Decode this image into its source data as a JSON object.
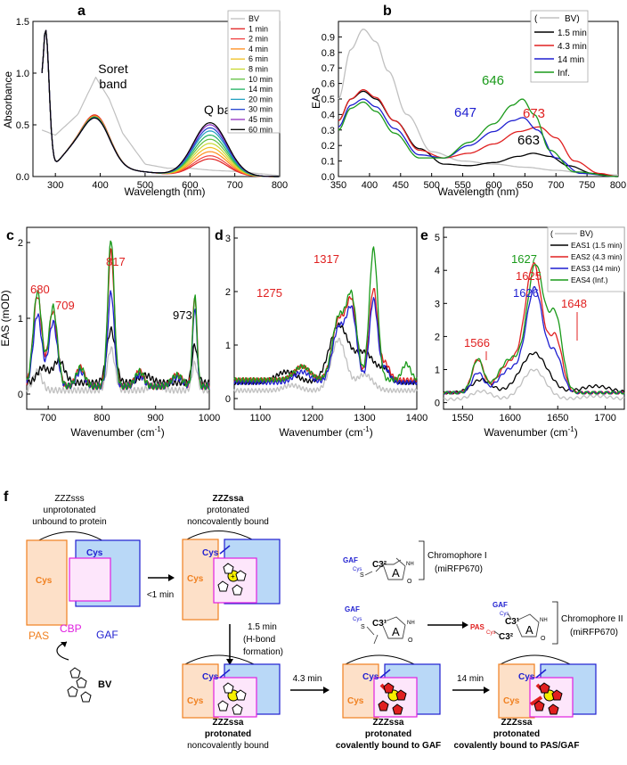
{
  "chart_data": [
    {
      "panel": "a",
      "type": "line",
      "xlabel": "Wavelength (nm)",
      "ylabel": "Absorbance",
      "xlim": [
        250,
        800
      ],
      "ylim": [
        0,
        1.5
      ],
      "xticks": [
        300,
        400,
        500,
        600,
        700,
        800
      ],
      "yticks": [
        0.0,
        0.5,
        1.0,
        1.5
      ],
      "legend": "right",
      "annotations": [
        "Soret",
        "band",
        "Q band"
      ],
      "series": [
        {
          "name": "BV",
          "color": "#c0c0c0",
          "soret": 0.96,
          "q": 0.06,
          "x": [
            270,
            300,
            350,
            390,
            420,
            450,
            500,
            550,
            600,
            650,
            700,
            750,
            800
          ],
          "y": [
            0.45,
            0.4,
            0.6,
            0.96,
            0.75,
            0.42,
            0.12,
            0.08,
            0.08,
            0.06,
            0.05,
            0.03,
            0.01
          ]
        },
        {
          "name": "1 min",
          "color": "#e02020",
          "soret": 0.55,
          "q": 0.17
        },
        {
          "name": "2 min",
          "color": "#f04040",
          "soret": 0.54,
          "q": 0.2
        },
        {
          "name": "4 min",
          "color": "#ff8c1a",
          "soret": 0.54,
          "q": 0.24
        },
        {
          "name": "6 min",
          "color": "#f0c020",
          "soret": 0.53,
          "q": 0.28
        },
        {
          "name": "8 min",
          "color": "#c8d830",
          "soret": 0.53,
          "q": 0.32
        },
        {
          "name": "10 min",
          "color": "#60c040",
          "soret": 0.53,
          "q": 0.36
        },
        {
          "name": "14 min",
          "color": "#20b060",
          "soret": 0.53,
          "q": 0.4
        },
        {
          "name": "20 min",
          "color": "#20a0c0",
          "soret": 0.52,
          "q": 0.44
        },
        {
          "name": "30 min",
          "color": "#2040d0",
          "soret": 0.52,
          "q": 0.47
        },
        {
          "name": "45 min",
          "color": "#9030c0",
          "soret": 0.52,
          "q": 0.5
        },
        {
          "name": "60 min",
          "color": "#000000",
          "soret": 0.52,
          "q": 0.52
        }
      ],
      "uv_peak": {
        "x": 278,
        "y": 1.38
      }
    },
    {
      "panel": "b",
      "type": "line",
      "xlabel": "Wavelength (nm)",
      "ylabel": "EAS",
      "xlim": [
        350,
        800
      ],
      "ylim": [
        0,
        1.0
      ],
      "xticks": [
        350,
        400,
        450,
        500,
        550,
        600,
        650,
        700,
        750,
        800
      ],
      "yticks": [
        0.0,
        0.1,
        0.2,
        0.3,
        0.4,
        0.5,
        0.6,
        0.7,
        0.8,
        0.9
      ],
      "legend": "top-right",
      "series": [
        {
          "name": "BV",
          "color": "#c0c0c0",
          "x": [
            350,
            370,
            390,
            410,
            430,
            460,
            500,
            550,
            600,
            650,
            700,
            750,
            800
          ],
          "y": [
            0.5,
            0.82,
            0.95,
            0.87,
            0.68,
            0.4,
            0.16,
            0.1,
            0.08,
            0.06,
            0.04,
            0.02,
            0.01
          ]
        },
        {
          "name": "1.5 min",
          "color": "#000000",
          "x": [
            350,
            370,
            390,
            410,
            440,
            480,
            520,
            560,
            600,
            640,
            663,
            690,
            720,
            760,
            800
          ],
          "y": [
            0.36,
            0.5,
            0.55,
            0.5,
            0.36,
            0.18,
            0.08,
            0.07,
            0.09,
            0.13,
            0.15,
            0.13,
            0.07,
            0.02,
            0.0
          ]
        },
        {
          "name": "4.3 min",
          "color": "#e02020",
          "x": [
            350,
            370,
            390,
            410,
            440,
            480,
            520,
            560,
            600,
            640,
            673,
            700,
            730,
            770,
            800
          ],
          "y": [
            0.36,
            0.5,
            0.56,
            0.51,
            0.36,
            0.17,
            0.12,
            0.15,
            0.21,
            0.29,
            0.32,
            0.25,
            0.1,
            0.02,
            0.0
          ]
        },
        {
          "name": "14 min",
          "color": "#1f1fd0",
          "x": [
            350,
            370,
            390,
            410,
            440,
            480,
            520,
            560,
            600,
            630,
            647,
            670,
            700,
            740,
            800
          ],
          "y": [
            0.32,
            0.46,
            0.5,
            0.45,
            0.31,
            0.14,
            0.12,
            0.2,
            0.29,
            0.36,
            0.38,
            0.3,
            0.12,
            0.02,
            0.0
          ]
        },
        {
          "name": "Inf.",
          "color": "#1a9a1a",
          "x": [
            350,
            370,
            390,
            410,
            440,
            480,
            520,
            560,
            600,
            630,
            646,
            665,
            690,
            730,
            800
          ],
          "y": [
            0.3,
            0.44,
            0.48,
            0.42,
            0.28,
            0.12,
            0.12,
            0.22,
            0.34,
            0.46,
            0.5,
            0.4,
            0.17,
            0.03,
            0.0
          ]
        }
      ],
      "labels": [
        {
          "text": "646",
          "color": "#1a9a1a"
        },
        {
          "text": "647",
          "color": "#1f1fd0"
        },
        {
          "text": "673",
          "color": "#e02020"
        },
        {
          "text": "663",
          "color": "#000000"
        }
      ],
      "legend_entries": [
        "(",
        "BV)",
        "1.5 min",
        "4.3 min",
        "14 min",
        "Inf."
      ]
    },
    {
      "panel": "c",
      "type": "line",
      "xlabel": "Wavenumber (cm",
      "xlabel_sup": "-1",
      "xlabel_tail": ")",
      "ylabel": "EAS (mOD)",
      "xlim": [
        660,
        1000
      ],
      "ylim": [
        -0.2,
        2.2
      ],
      "xticks": [
        700,
        800,
        900,
        1000
      ],
      "yticks": [
        0,
        1,
        2
      ],
      "peaks": [
        {
          "text": "680",
          "x": 680,
          "y": 1.3
        },
        {
          "text": "709",
          "x": 709,
          "y": 1.15
        },
        {
          "text": "817",
          "x": 817,
          "y": 2.05
        },
        {
          "text": "973",
          "x": 973,
          "y": 1.3
        }
      ]
    },
    {
      "panel": "d",
      "type": "line",
      "xlabel": "Wavenumber (cm",
      "xlabel_sup": "-1",
      "xlabel_tail": ")",
      "xlim": [
        1050,
        1400
      ],
      "ylim": [
        -0.2,
        3.2
      ],
      "xticks": [
        1100,
        1200,
        1300,
        1400
      ],
      "yticks": [
        0,
        1,
        2,
        3
      ],
      "peaks": [
        {
          "text": "1275",
          "x": 1275,
          "y": 1.9
        },
        {
          "text": "1317",
          "x": 1317,
          "y": 2.65
        }
      ]
    },
    {
      "panel": "e",
      "type": "line",
      "xlabel": "Wavenumber (cm",
      "xlabel_sup": "-1",
      "xlabel_tail": ")",
      "xlim": [
        1530,
        1720
      ],
      "ylim": [
        -0.2,
        5.3
      ],
      "xticks": [
        1550,
        1600,
        1650,
        1700
      ],
      "yticks": [
        0,
        1,
        2,
        3,
        4,
        5
      ],
      "legend": "top-right",
      "legend_entries": [
        "(",
        "BV)",
        "EAS1 (1.5 min)",
        "EAS2 (4.3 min)",
        "EAS3 (14 min)",
        "EAS4 (Inf.)"
      ],
      "peaks": [
        {
          "text": "1627",
          "color": "#1a9a1a"
        },
        {
          "text": "1625",
          "color": "#e02020"
        },
        {
          "text": "1626",
          "color": "#1f1fd0"
        },
        {
          "text": "1648",
          "color": "#e02020"
        },
        {
          "text": "1566",
          "color": "#e02020"
        }
      ]
    }
  ],
  "panel_letters": [
    "a",
    "b",
    "c",
    "d",
    "e",
    "f"
  ],
  "scheme": {
    "states": [
      {
        "title": "ZZZsss",
        "line1": "unprotonated",
        "line2": "unbound to protein",
        "bold": false
      },
      {
        "title": "ZZZssa",
        "line1": "protonated",
        "line2": "noncovalently bound",
        "bold": true
      },
      {
        "title": "ZZZssa",
        "line1": "protonated",
        "line2": "noncovalently bound",
        "bold": false
      },
      {
        "title": "ZZZssa",
        "line1": "protonated",
        "line2": "covalently bound to GAF",
        "bold": true
      },
      {
        "title": "ZZZssa",
        "line1": "protonated",
        "line2": "covalently bound to PAS/GAF",
        "bold": true
      }
    ],
    "times": {
      "t1": "<1 min",
      "t2a": "1.5 min",
      "t2b": "(H-bond",
      "t2c": "formation)",
      "t3": "4.3 min",
      "t4": "14 min"
    },
    "labels": {
      "cys": "Cys",
      "pas": "PAS",
      "cbp": "CBP",
      "gaf": "GAF",
      "bv": "BV"
    },
    "chromophores": {
      "c1_label1": "Chromophore I",
      "c1_label2": "(miRFP670)",
      "c2_label1": "Chromophore II",
      "c2_label2": "(miRFP670)",
      "gaf": "GAF",
      "pas": "PAS",
      "cys": "Cys",
      "c32": "C3²",
      "c31": "C3¹",
      "ring": "A",
      "nh": "NH",
      "o": "O",
      "s": "S"
    }
  },
  "colors": {
    "red": "#e02020",
    "blue": "#1f1fd0",
    "green": "#1a9a1a",
    "orange": "#f08020",
    "magenta": "#e020e0",
    "gray": "#c0c0c0"
  }
}
